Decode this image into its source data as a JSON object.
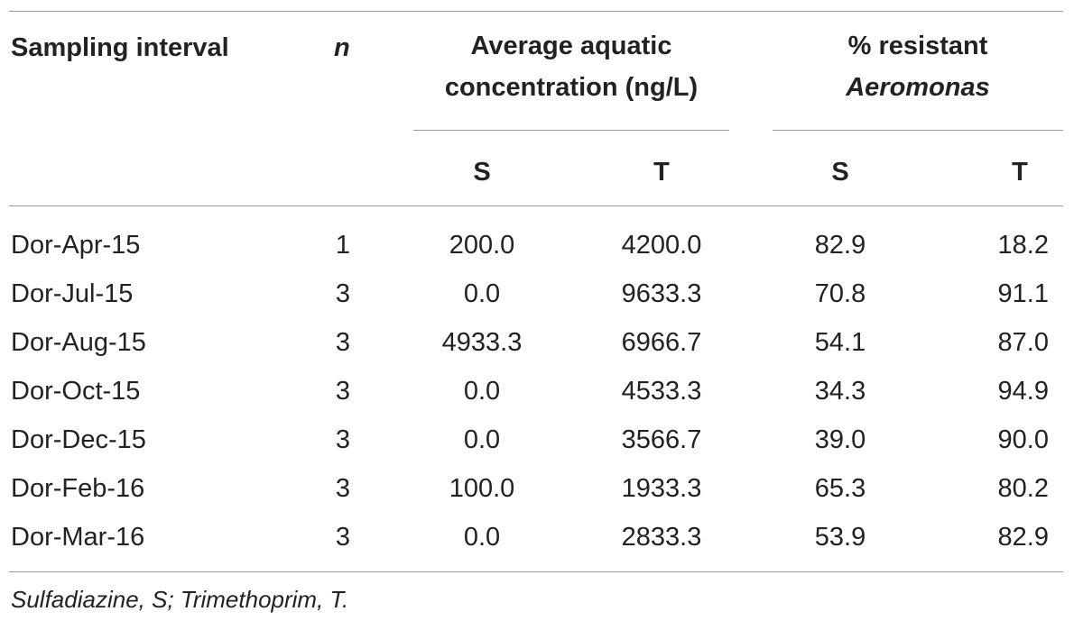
{
  "table": {
    "headers": {
      "sampling_interval": "Sampling interval",
      "n": "n",
      "avg_conc_line1": "Average aquatic",
      "avg_conc_line2": "concentration (ng/L)",
      "resistant_line1": "% resistant",
      "resistant_line2": "Aeromonas",
      "sub_s1": "S",
      "sub_t1": "T",
      "sub_s2": "S",
      "sub_t2": "T"
    },
    "rows": [
      {
        "interval": "Dor-Apr-15",
        "n": "1",
        "conc_s": "200.0",
        "conc_t": "4200.0",
        "res_s": "82.9",
        "res_t": "18.2"
      },
      {
        "interval": "Dor-Jul-15",
        "n": "3",
        "conc_s": "0.0",
        "conc_t": "9633.3",
        "res_s": "70.8",
        "res_t": "91.1"
      },
      {
        "interval": "Dor-Aug-15",
        "n": "3",
        "conc_s": "4933.3",
        "conc_t": "6966.7",
        "res_s": "54.1",
        "res_t": "87.0"
      },
      {
        "interval": "Dor-Oct-15",
        "n": "3",
        "conc_s": "0.0",
        "conc_t": "4533.3",
        "res_s": "34.3",
        "res_t": "94.9"
      },
      {
        "interval": "Dor-Dec-15",
        "n": "3",
        "conc_s": "0.0",
        "conc_t": "3566.7",
        "res_s": "39.0",
        "res_t": "90.0"
      },
      {
        "interval": "Dor-Feb-16",
        "n": "3",
        "conc_s": "100.0",
        "conc_t": "1933.3",
        "res_s": "65.3",
        "res_t": "80.2"
      },
      {
        "interval": "Dor-Mar-16",
        "n": "3",
        "conc_s": "0.0",
        "conc_t": "2833.3",
        "res_s": "53.9",
        "res_t": "82.9"
      }
    ],
    "footnote": "Sulfadiazine, S; Trimethoprim, T."
  }
}
